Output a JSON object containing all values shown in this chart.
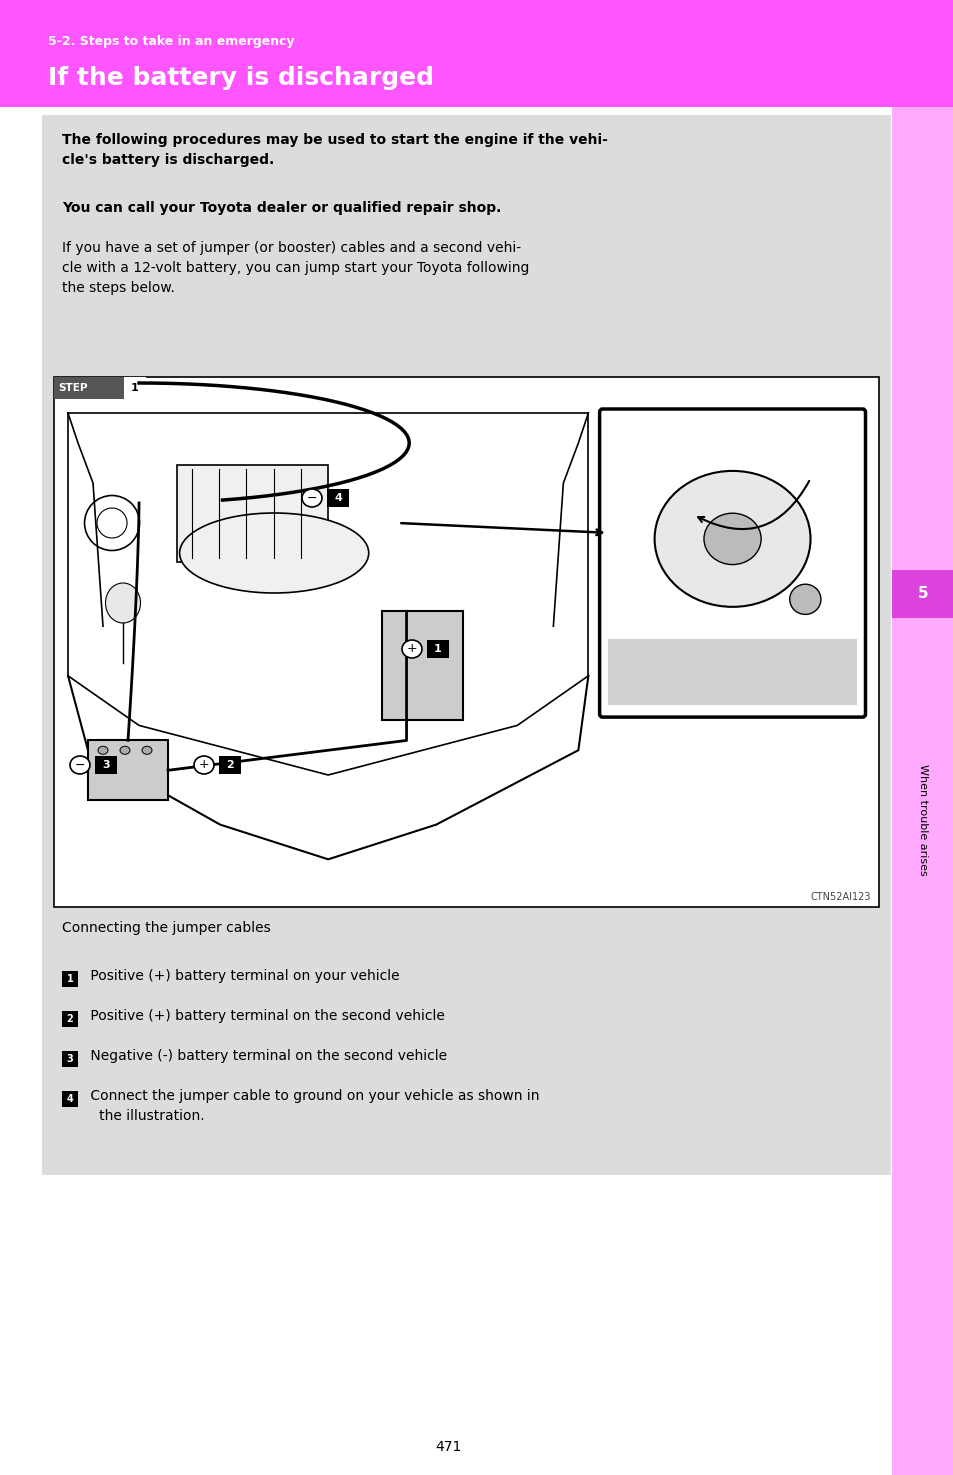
{
  "page_bg": "#ffffff",
  "header_bg": "#ff55ff",
  "header_subtitle": "5-2. Steps to take in an emergency",
  "header_title": "If the battery is discharged",
  "header_text_color": "#ffffff",
  "content_bg": "#dcdcdc",
  "bold_text1": "The following procedures may be used to start the engine if the vehi-\ncle’s battery is discharged.",
  "bold_text2": "You can call your Toyota dealer or qualified repair shop.",
  "normal_text": "If you have a set of jumper (or booster) cables and a second vehi-\ncle with a 12-volt battery, you can jump start your Toyota following\nthe steps below.",
  "caption": "Connecting the jumper cables",
  "bullets": [
    " Positive (+) battery terminal on your vehicle",
    " Positive (+) battery terminal on the second vehicle",
    " Negative (-) battery terminal on the second vehicle",
    " Connect the jumper cable to ground on your vehicle as shown in\n   the illustration."
  ],
  "right_tab_color": "#ffaaff",
  "right_tab_number_bg": "#dd44dd",
  "right_tab_number": "5",
  "right_tab_text": "When trouble arises",
  "page_number": "471",
  "image_code": "CTN52AI123"
}
